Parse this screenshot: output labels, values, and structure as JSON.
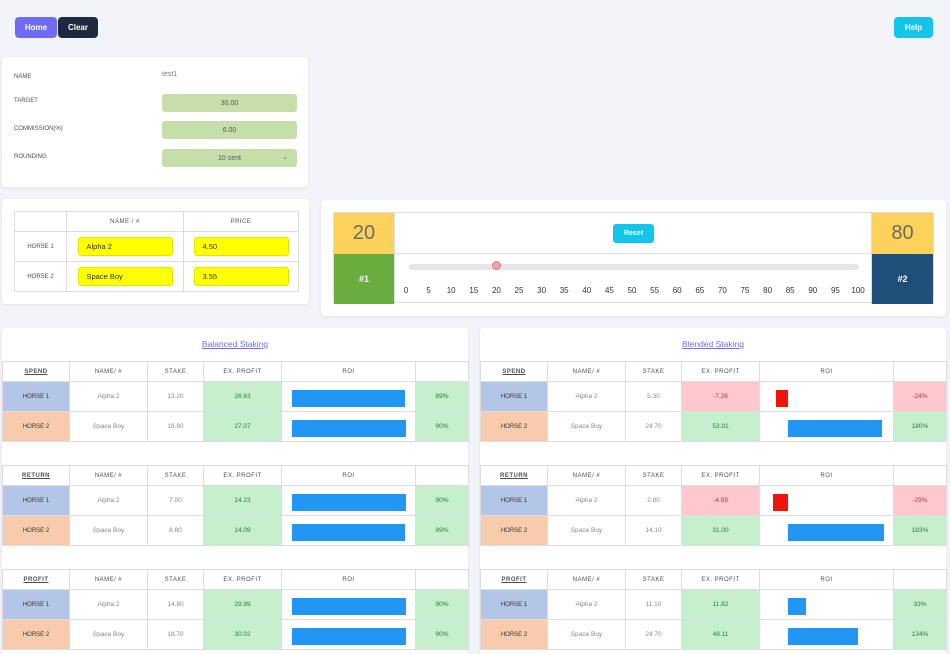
{
  "toolbar": {
    "home_label": "Home",
    "clear_label": "Clear",
    "help_label": "Help"
  },
  "settings": {
    "name_label": "NAME",
    "name_value": "test1",
    "target_label": "TARGET",
    "target_value": "30.00",
    "commission_label": "COMMISSION(%)",
    "commission_value": "6.00",
    "rounding_label": "ROUNDING",
    "rounding_value": "10 cent"
  },
  "horses": {
    "col_name": "NAME / #",
    "col_price": "PRICE",
    "rows": [
      {
        "label": "HORSE 1",
        "name": "Alpha 2",
        "price": "4.50"
      },
      {
        "label": "HORSE 2",
        "name": "Space Boy",
        "price": "3.55"
      }
    ]
  },
  "slider": {
    "left_pct": "20",
    "right_pct": "80",
    "left_tag": "#1",
    "right_tag": "#2",
    "reset_label": "Reset",
    "value": 20,
    "ticks": [
      "0",
      "5",
      "10",
      "15",
      "20",
      "25",
      "30",
      "35",
      "40",
      "45",
      "50",
      "55",
      "60",
      "65",
      "70",
      "75",
      "80",
      "85",
      "90",
      "95",
      "100"
    ]
  },
  "colors": {
    "accent": "#6e6cf4",
    "help": "#14c4ea",
    "dark": "#1d2a3e",
    "horse1": "#b4c6e7",
    "horse2": "#f8cbad",
    "bar": "#2196f3",
    "negbar": "#f0140f"
  },
  "headers": {
    "name": "NAME/ #",
    "stake": "STAKE",
    "exprofit": "EX. PROFIT",
    "roi": "ROI"
  },
  "balanced": {
    "title": "Balanced Staking",
    "sections": [
      {
        "type": "SPEND",
        "rows": [
          {
            "label": "HORSE 1",
            "name": "Alpha 2",
            "stake": "13.20",
            "profit": "26.63",
            "roi": "89%",
            "roi_value": 89
          },
          {
            "label": "HORSE 2",
            "name": "Space Boy",
            "stake": "16.80",
            "profit": "27.07",
            "roi": "90%",
            "roi_value": 90
          }
        ]
      },
      {
        "type": "RETURN",
        "rows": [
          {
            "label": "HORSE 1",
            "name": "Alpha 2",
            "stake": "7.00",
            "profit": "14.23",
            "roi": "90%",
            "roi_value": 90
          },
          {
            "label": "HORSE 2",
            "name": "Space Boy",
            "stake": "8.80",
            "profit": "14.09",
            "roi": "89%",
            "roi_value": 89
          }
        ]
      },
      {
        "type": "PROFIT",
        "rows": [
          {
            "label": "HORSE 1",
            "name": "Alpha 2",
            "stake": "14.80",
            "profit": "29.99",
            "roi": "90%",
            "roi_value": 90
          },
          {
            "label": "HORSE 2",
            "name": "Space Boy",
            "stake": "18.70",
            "profit": "30.02",
            "roi": "90%",
            "roi_value": 90
          }
        ]
      }
    ]
  },
  "blended": {
    "title": "Blended Staking",
    "sections": [
      {
        "type": "SPEND",
        "rows": [
          {
            "label": "HORSE 1",
            "name": "Alpha 2",
            "stake": "5.30",
            "profit": "-7.26",
            "roi": "-24%",
            "roi_value": -24
          },
          {
            "label": "HORSE 2",
            "name": "Space Boy",
            "stake": "24.70",
            "profit": "53.91",
            "roi": "180%",
            "roi_value": 180
          }
        ]
      },
      {
        "type": "RETURN",
        "rows": [
          {
            "label": "HORSE 1",
            "name": "Alpha 2",
            "stake": "2.80",
            "profit": "-4.89",
            "roi": "-29%",
            "roi_value": -29
          },
          {
            "label": "HORSE 2",
            "name": "Space Boy",
            "stake": "14.10",
            "profit": "31.00",
            "roi": "183%",
            "roi_value": 183
          }
        ]
      },
      {
        "type": "PROFIT",
        "rows": [
          {
            "label": "HORSE 1",
            "name": "Alpha 2",
            "stake": "11.10",
            "profit": "11.82",
            "roi": "33%",
            "roi_value": 33
          },
          {
            "label": "HORSE 2",
            "name": "Space Boy",
            "stake": "24.70",
            "profit": "48.11",
            "roi": "134%",
            "roi_value": 134
          }
        ]
      }
    ]
  }
}
